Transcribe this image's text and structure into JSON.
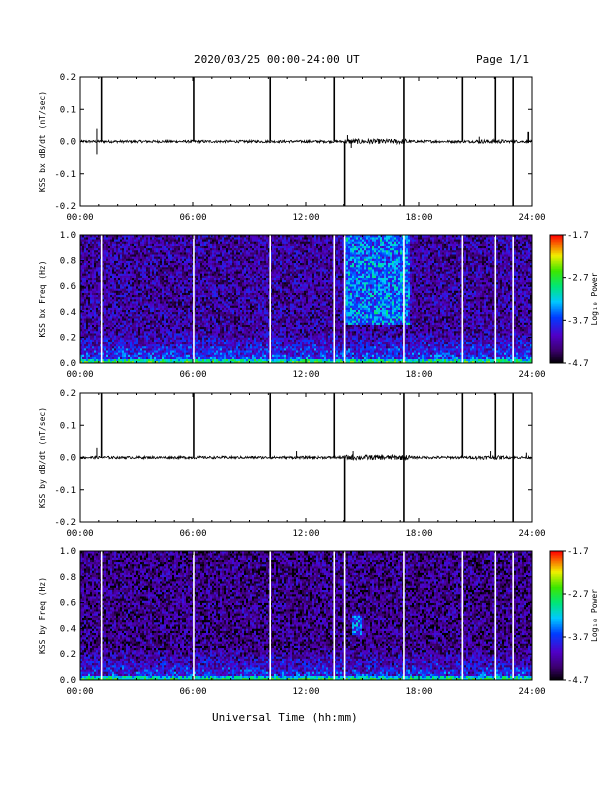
{
  "header": {
    "title": "2020/03/25  00:00-24:00 UT",
    "page": "Page 1/1"
  },
  "xaxis_label": "Universal Time (hh:mm)",
  "colorbar": {
    "label": "Log₁₀ Power",
    "ticks": [
      "-1.7",
      "-2.7",
      "-3.7",
      "-4.7"
    ],
    "range": [
      -4.7,
      -1.7
    ]
  },
  "chart_data": [
    {
      "type": "line",
      "ylabel": "KSS bx dB/dt (nT/sec)",
      "xlim": [
        0,
        24
      ],
      "ylim": [
        -0.2,
        0.2
      ],
      "x_ticks": [
        "00:00",
        "06:00",
        "12:00",
        "18:00",
        "24:00"
      ],
      "y_ticks": [
        "-0.2",
        "-0.1",
        "0.0",
        "0.1",
        "0.2"
      ],
      "baseline": 0.0,
      "spikes": [
        {
          "t": 1.15,
          "y": 0.2
        },
        {
          "t": 6.05,
          "y": 0.2
        },
        {
          "t": 10.1,
          "y": 0.2
        },
        {
          "t": 13.5,
          "y": 0.2
        },
        {
          "t": 14.05,
          "y": -0.2
        },
        {
          "t": 17.2,
          "y": 0.2
        },
        {
          "t": 17.2,
          "y": -0.2
        },
        {
          "t": 20.3,
          "y": 0.2
        },
        {
          "t": 22.05,
          "y": 0.2
        },
        {
          "t": 23.0,
          "y": 0.2
        },
        {
          "t": 23.0,
          "y": -0.2
        },
        {
          "t": 23.8,
          "y": 0.03
        }
      ],
      "small_events": [
        {
          "t": 0.9,
          "y": 0.04
        },
        {
          "t": 0.9,
          "y": -0.04
        },
        {
          "t": 14.2,
          "y": 0.02
        },
        {
          "t": 14.4,
          "y": -0.02
        },
        {
          "t": 21.2,
          "y": 0.015
        }
      ]
    },
    {
      "type": "heatmap",
      "ylabel": "KSS bx Freq (Hz)",
      "xlim": [
        0,
        24
      ],
      "ylim": [
        0,
        1.0
      ],
      "x_ticks": [
        "00:00",
        "06:00",
        "12:00",
        "18:00",
        "24:00"
      ],
      "y_ticks": [
        "0.0",
        "0.2",
        "0.4",
        "0.6",
        "0.8",
        "1.0"
      ],
      "zlim": [
        -4.7,
        -1.7
      ],
      "gaps": [
        1.15,
        6.05,
        10.1,
        13.5,
        14.05,
        17.2,
        20.3,
        22.05,
        23.0
      ],
      "active_intervals": [
        {
          "t0": 14.0,
          "t1": 17.5,
          "f0": 0.3,
          "f1": 1.0
        }
      ],
      "background_level": -4.2
    },
    {
      "type": "line",
      "ylabel": "KSS by dB/dt (nT/sec)",
      "xlim": [
        0,
        24
      ],
      "ylim": [
        -0.2,
        0.2
      ],
      "x_ticks": [
        "00:00",
        "06:00",
        "12:00",
        "18:00",
        "24:00"
      ],
      "y_ticks": [
        "-0.2",
        "-0.1",
        "0.0",
        "0.1",
        "0.2"
      ],
      "baseline": 0.0,
      "spikes": [
        {
          "t": 1.15,
          "y": 0.2
        },
        {
          "t": 6.05,
          "y": 0.2
        },
        {
          "t": 10.1,
          "y": 0.2
        },
        {
          "t": 13.5,
          "y": 0.2
        },
        {
          "t": 14.05,
          "y": -0.2
        },
        {
          "t": 17.2,
          "y": 0.2
        },
        {
          "t": 17.2,
          "y": -0.2
        },
        {
          "t": 20.3,
          "y": 0.2
        },
        {
          "t": 22.05,
          "y": 0.2
        },
        {
          "t": 23.0,
          "y": 0.2
        },
        {
          "t": 23.0,
          "y": -0.2
        }
      ],
      "small_events": [
        {
          "t": 0.9,
          "y": 0.03
        },
        {
          "t": 11.5,
          "y": 0.02
        },
        {
          "t": 14.5,
          "y": 0.02
        },
        {
          "t": 21.8,
          "y": 0.02
        },
        {
          "t": 23.7,
          "y": 0.015
        }
      ]
    },
    {
      "type": "heatmap",
      "ylabel": "KSS by Freq (Hz)",
      "xlim": [
        0,
        24
      ],
      "ylim": [
        0,
        1.0
      ],
      "x_ticks": [
        "00:00",
        "06:00",
        "12:00",
        "18:00",
        "24:00"
      ],
      "y_ticks": [
        "0.0",
        "0.2",
        "0.4",
        "0.6",
        "0.8",
        "1.0"
      ],
      "zlim": [
        -4.7,
        -1.7
      ],
      "gaps": [
        1.15,
        6.05,
        10.1,
        13.5,
        14.05,
        17.2,
        20.3,
        22.05,
        23.0
      ],
      "active_intervals": [
        {
          "t0": 14.4,
          "t1": 15.0,
          "f0": 0.35,
          "f1": 0.5
        }
      ],
      "background_level": -4.3
    }
  ]
}
